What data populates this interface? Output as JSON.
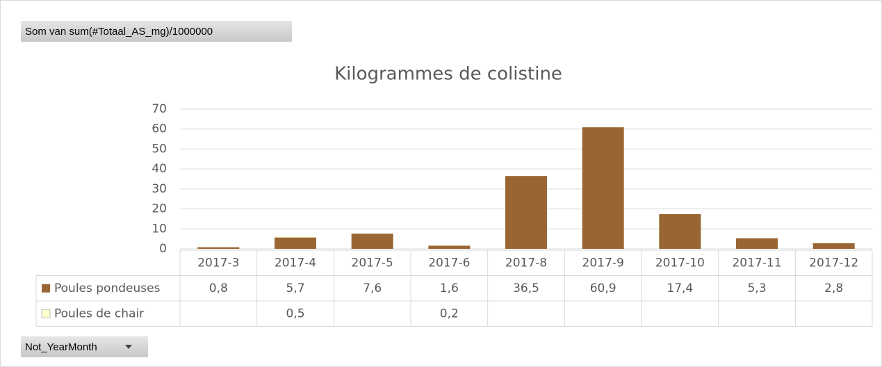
{
  "chart_data": {
    "type": "bar",
    "stacked": true,
    "title": "Kilogrammes de colistine",
    "value_field_button": "Som van sum(#Totaal_AS_mg)/1000000",
    "axis_field_button": "Not_YearMonth",
    "categories": [
      "2017-3",
      "2017-4",
      "2017-5",
      "2017-6",
      "2017-8",
      "2017-9",
      "2017-10",
      "2017-11",
      "2017-12"
    ],
    "series": [
      {
        "name": "Poules pondeuses",
        "color": "#996633",
        "values": [
          0.8,
          5.7,
          7.6,
          1.6,
          36.5,
          60.9,
          17.4,
          5.3,
          2.8
        ],
        "value_labels": [
          "0,8",
          "5,7",
          "7,6",
          "1,6",
          "36,5",
          "60,9",
          "17,4",
          "5,3",
          "2,8"
        ]
      },
      {
        "name": "Poules de chair",
        "color": "#ffffcc",
        "values": [
          null,
          0.5,
          null,
          0.2,
          null,
          null,
          null,
          null,
          null
        ],
        "value_labels": [
          null,
          "0,5",
          null,
          "0,2",
          null,
          null,
          null,
          null,
          null
        ]
      }
    ],
    "ylim": [
      0,
      70
    ],
    "yticks": [
      0,
      10,
      20,
      30,
      40,
      50,
      60,
      70
    ],
    "grid": true
  }
}
